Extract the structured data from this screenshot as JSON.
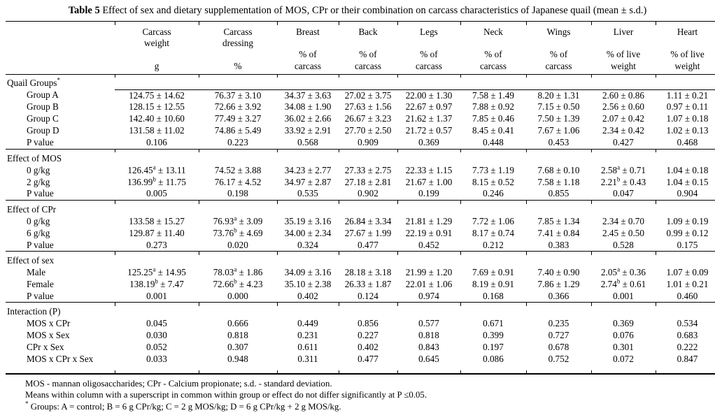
{
  "title": {
    "label": "Table 5",
    "text": " Effect of sex and dietary supplementation of MOS, CPr or their combination on carcass characteristics of Japanese quail (mean ± s.d.)"
  },
  "table": {
    "columns": [
      {
        "name": "Carcass\nweight",
        "unit": "g"
      },
      {
        "name": "Carcass\ndressing",
        "unit": "%"
      },
      {
        "name": "Breast",
        "unit": "% of\ncarcass"
      },
      {
        "name": "Back",
        "unit": "% of\ncarcass"
      },
      {
        "name": "Legs",
        "unit": "% of\ncarcass"
      },
      {
        "name": "Neck",
        "unit": "% of\ncarcass"
      },
      {
        "name": "Wings",
        "unit": "% of\ncarcass"
      },
      {
        "name": "Liver",
        "unit": "% of live\nweight"
      },
      {
        "name": "Heart",
        "unit": "% of live\nweight"
      }
    ],
    "sections": [
      {
        "label": "Quail Groups^*",
        "underline": true,
        "rows": [
          {
            "label": "Group A",
            "values": [
              "124.75 ± 14.62",
              "76.37 ± 3.10",
              "34.37 ± 3.63",
              "27.02 ± 3.75",
              "22.00 ± 1.30",
              "7.58 ± 1.49",
              "8.20 ± 1.31",
              "2.60 ± 0.86",
              "1.11 ± 0.21"
            ]
          },
          {
            "label": "Group B",
            "values": [
              "128.15 ± 12.55",
              "72.66 ± 3.92",
              "34.08 ± 1.90",
              "27.63 ± 1.56",
              "22.67 ± 0.97",
              "7.88 ± 0.92",
              "7.15 ± 0.50",
              "2.56 ± 0.60",
              "0.97 ± 0.11"
            ]
          },
          {
            "label": "Group C",
            "values": [
              "142.40 ± 10.60",
              "77.49 ± 3.27",
              "36.02 ± 2.66",
              "26.67 ± 3.23",
              "21.62 ± 1.37",
              "7.85 ± 0.46",
              "7.50 ± 1.39",
              "2.07 ± 0.42",
              "1.07 ± 0.18"
            ]
          },
          {
            "label": "Group D",
            "values": [
              "131.58 ± 11.02",
              "74.86 ± 5.49",
              "33.92 ± 2.91",
              "27.70 ± 2.50",
              "21.72 ± 0.57",
              "8.45 ± 0.41",
              "7.67 ± 1.06",
              "2.34 ± 0.42",
              "1.02 ± 0.13"
            ]
          },
          {
            "label": "P value",
            "values": [
              "0.106",
              "0.223",
              "0.568",
              "0.909",
              "0.369",
              "0.448",
              "0.453",
              "0.427",
              "0.468"
            ]
          }
        ]
      },
      {
        "label": "Effect of MOS",
        "underline": false,
        "rows": [
          {
            "label": "0 g/kg",
            "values": [
              "126.45^a ± 13.11",
              "74.52 ± 3.88",
              "34.23 ± 2.77",
              "27.33 ± 2.75",
              "22.33 ± 1.15",
              "7.73 ± 1.19",
              "7.68 ± 0.10",
              "2.58^a ± 0.71",
              "1.04 ± 0.18"
            ]
          },
          {
            "label": "2 g/kg",
            "values": [
              "136.99^b ± 11.75",
              "76.17 ± 4.52",
              "34.97 ± 2.87",
              "27.18 ± 2.81",
              "21.67 ± 1.00",
              "8.15 ± 0.52",
              "7.58 ± 1.18",
              "2.21^b ± 0.43",
              "1.04 ± 0.15"
            ]
          },
          {
            "label": "P value",
            "values": [
              "0.005",
              "0.198",
              "0.535",
              "0.902",
              "0.199",
              "0.246",
              "0.855",
              "0.047",
              "0.904"
            ]
          }
        ]
      },
      {
        "label": "Effect of CPr",
        "underline": false,
        "rows": [
          {
            "label": "0 g/kg",
            "values": [
              "133.58 ± 15.27",
              "76.93^a ± 3.09",
              "35.19 ± 3.16",
              "26.84 ± 3.34",
              "21.81 ± 1.29",
              "7.72 ± 1.06",
              "7.85 ± 1.34",
              "2.34 ± 0.70",
              "1.09 ± 0.19"
            ]
          },
          {
            "label": "6 g/kg",
            "values": [
              "129.87 ± 11.40",
              "73.76^b ± 4.69",
              "34.00 ± 2.34",
              "27.67 ± 1.99",
              "22.19 ± 0.91",
              "8.17 ± 0.74",
              "7.41 ± 0.84",
              "2.45 ± 0.50",
              "0.99 ± 0.12"
            ]
          },
          {
            "label": "P value",
            "values": [
              "0.273",
              "0.020",
              "0.324",
              "0.477",
              "0.452",
              "0.212",
              "0.383",
              "0.528",
              "0.175"
            ]
          }
        ]
      },
      {
        "label": "Effect of sex",
        "underline": false,
        "rows": [
          {
            "label": "Male",
            "values": [
              "125.25^a ± 14.95",
              "78.03^a ± 1.86",
              "34.09 ± 3.16",
              "28.18 ± 3.18",
              "21.99 ± 1.20",
              "7.69 ± 0.91",
              "7.40 ± 0.90",
              "2.05^a ± 0.36",
              "1.07 ± 0.09"
            ]
          },
          {
            "label": "Female",
            "values": [
              "138.19^b ± 7.47",
              "72.66^b ± 4.23",
              "35.10 ± 2.38",
              "26.33 ± 1.87",
              "22.01 ± 1.06",
              "8.19 ± 0.91",
              "7.86 ± 1.29",
              "2.74^b ± 0.61",
              "1.01 ± 0.21"
            ]
          },
          {
            "label": "P value",
            "values": [
              "0.001",
              "0.000",
              "0.402",
              "0.124",
              "0.974",
              "0.168",
              "0.366",
              "0.001",
              "0.460"
            ]
          }
        ]
      },
      {
        "label": "Interaction (P)",
        "underline": false,
        "rows": [
          {
            "label": "MOS x CPr",
            "values": [
              "0.045",
              "0.666",
              "0.449",
              "0.856",
              "0.577",
              "0.671",
              "0.235",
              "0.369",
              "0.534"
            ]
          },
          {
            "label": "MOS x Sex",
            "values": [
              "0.030",
              "0.818",
              "0.231",
              "0.227",
              "0.818",
              "0.399",
              "0.727",
              "0.076",
              "0.683"
            ]
          },
          {
            "label": "CPr x Sex",
            "values": [
              "0.052",
              "0.307",
              "0.611",
              "0.402",
              "0.843",
              "0.197",
              "0.678",
              "0.301",
              "0.222"
            ]
          },
          {
            "label": "MOS x CPr x Sex",
            "values": [
              "0.033",
              "0.948",
              "0.311",
              "0.477",
              "0.645",
              "0.086",
              "0.752",
              "0.072",
              "0.847"
            ]
          }
        ]
      }
    ]
  },
  "footnotes": [
    "MOS - mannan oligosaccharides; CPr - Calcium propionate; s.d. - standard deviation.",
    "Means within column with a superscript in common within group or effect do not differ significantly at P ≤0.05.",
    "^* Groups: A = control; B = 6 g CPr/kg; C = 2 g MOS/kg; D = 6 g CPr/kg + 2 g MOS/kg."
  ]
}
